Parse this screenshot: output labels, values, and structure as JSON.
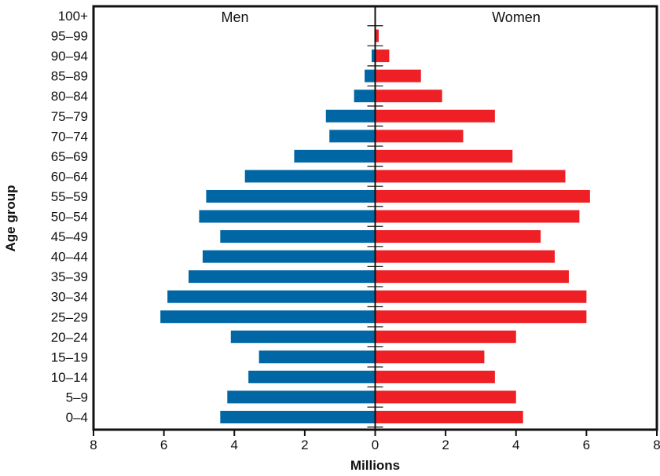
{
  "chart_data": {
    "type": "bar",
    "orientation": "horizontal-population-pyramid",
    "title": "",
    "xlabel": "Millions",
    "ylabel": "Age group",
    "xlim": [
      -8,
      8
    ],
    "x_ticks": [
      -8,
      -6,
      -4,
      -2,
      0,
      2,
      4,
      6,
      8
    ],
    "x_tick_labels": [
      "8",
      "6",
      "4",
      "2",
      "0",
      "2",
      "4",
      "6",
      "8"
    ],
    "grid": false,
    "categories": [
      "0–4",
      "5–9",
      "10–14",
      "15–19",
      "20–24",
      "25–29",
      "30–34",
      "35–39",
      "40–44",
      "45–49",
      "50–54",
      "55–59",
      "60–64",
      "65–69",
      "70–74",
      "75–79",
      "80–84",
      "85–89",
      "90–94",
      "95–99",
      "100+"
    ],
    "series": [
      {
        "name": "Men",
        "side": "left",
        "color": "#0066a4",
        "values": [
          4.4,
          4.2,
          3.6,
          3.3,
          4.1,
          6.1,
          5.9,
          5.3,
          4.9,
          4.4,
          5.0,
          4.8,
          3.7,
          2.3,
          1.3,
          1.4,
          0.6,
          0.3,
          0.1,
          0.0,
          0.0
        ]
      },
      {
        "name": "Women",
        "side": "right",
        "color": "#ee1f25",
        "values": [
          4.2,
          4.0,
          3.4,
          3.1,
          4.0,
          6.0,
          6.0,
          5.5,
          5.1,
          4.7,
          5.8,
          6.1,
          5.4,
          3.9,
          2.5,
          3.4,
          1.9,
          1.3,
          0.4,
          0.1,
          0.0
        ]
      }
    ]
  }
}
